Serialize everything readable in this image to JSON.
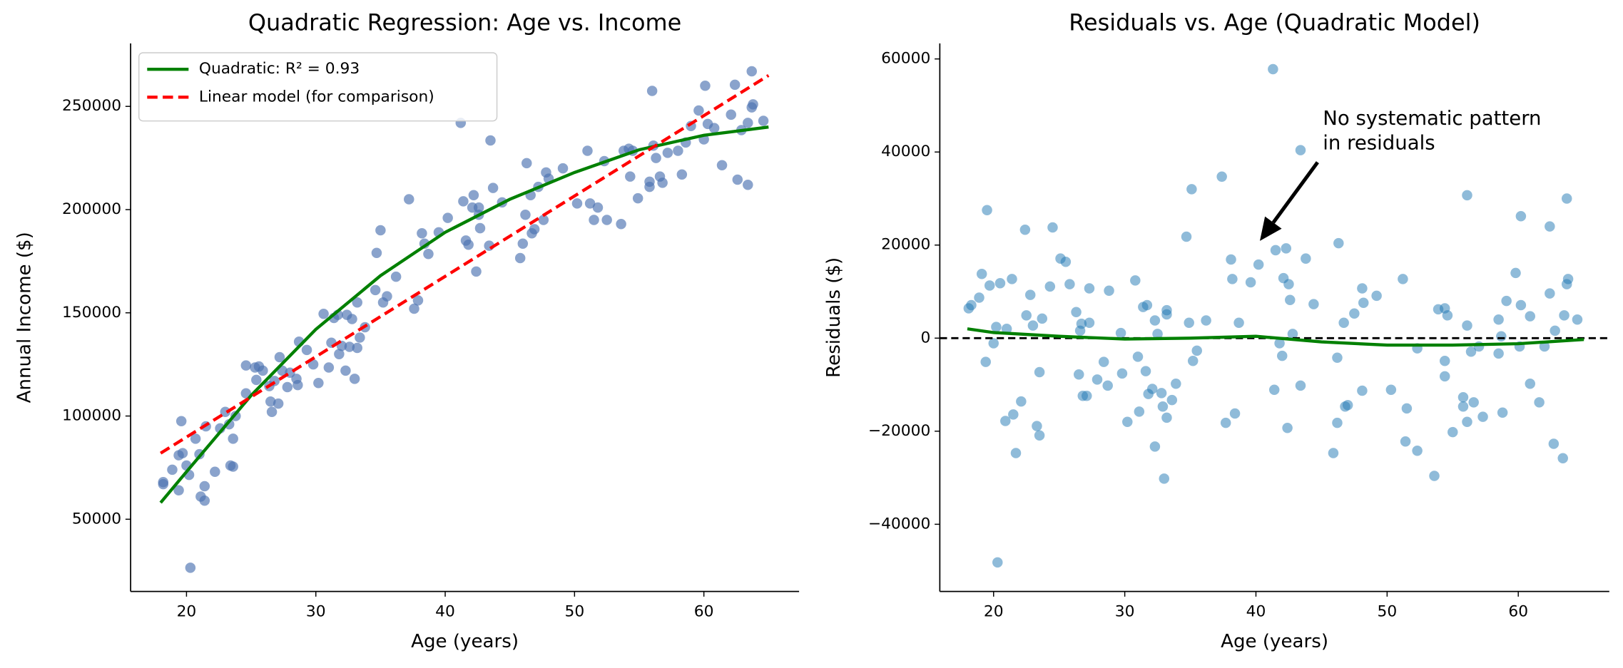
{
  "chart_data": [
    {
      "type": "scatter",
      "title": "Quadratic Regression: Age vs. Income",
      "xlabel": "Age (years)",
      "ylabel": "Annual Income ($)",
      "xlim": [
        15.68,
        67.36
      ],
      "ylim": [
        15000,
        280500
      ],
      "xticks": [
        20,
        30,
        40,
        50,
        60
      ],
      "yticks": [
        50000,
        100000,
        150000,
        200000,
        250000
      ],
      "legend": "upper left",
      "points": {
        "color": "#4c72b0",
        "opacity": 0.65,
        "x": [
          18.2,
          18.2,
          18.9,
          19.6,
          19.4,
          19.7,
          19.4,
          20.0,
          20.2,
          20.3,
          20.7,
          21.0,
          21.1,
          21.4,
          21.4,
          21.5,
          22.2,
          22.6,
          23.0,
          23.3,
          23.4,
          23.6,
          23.6,
          23.8,
          24.6,
          24.6,
          25.3,
          25.6,
          25.4,
          25.9,
          26.4,
          26.5,
          26.6,
          26.8,
          27.1,
          27.2,
          27.4,
          27.8,
          28.0,
          28.5,
          28.6,
          28.7,
          29.3,
          29.8,
          30.2,
          30.6,
          31.0,
          31.2,
          31.4,
          31.7,
          31.8,
          32.0,
          32.4,
          32.3,
          32.6,
          32.8,
          33.0,
          33.2,
          33.2,
          33.4,
          33.8,
          34.6,
          34.7,
          35.0,
          35.2,
          35.5,
          36.2,
          37.2,
          37.6,
          37.9,
          38.2,
          38.4,
          38.7,
          39.5,
          40.2,
          41.2,
          41.4,
          41.6,
          41.8,
          42.1,
          42.2,
          42.4,
          42.6,
          42.6,
          42.7,
          43.4,
          43.5,
          43.7,
          44.4,
          45.8,
          46.0,
          46.2,
          46.3,
          46.6,
          46.7,
          46.9,
          47.2,
          47.6,
          47.8,
          48.0,
          49.1,
          50.2,
          51.0,
          51.2,
          51.5,
          51.8,
          52.3,
          52.5,
          53.6,
          53.8,
          54.2,
          54.3,
          54.5,
          54.9,
          55.8,
          55.8,
          56.0,
          56.1,
          56.3,
          56.6,
          56.8,
          57.2,
          58.0,
          58.3,
          58.6,
          59.0,
          59.6,
          60.0,
          60.1,
          60.3,
          60.8,
          61.4,
          62.1,
          62.4,
          62.6,
          62.9,
          63.4,
          63.4,
          63.7,
          63.7,
          63.8,
          64.6
        ],
        "y": [
          67000,
          68000,
          74000,
          97500,
          81000,
          82000,
          64000,
          76000,
          71500,
          26500,
          89000,
          81500,
          61000,
          66000,
          59000,
          95000,
          73000,
          94000,
          102000,
          96000,
          76000,
          75500,
          89000,
          100000,
          124500,
          111000,
          123500,
          124000,
          117500,
          122000,
          114500,
          107000,
          102000,
          117000,
          106000,
          128500,
          122000,
          114000,
          121000,
          118000,
          115000,
          136000,
          132000,
          125000,
          116000,
          149500,
          123500,
          135500,
          147500,
          149000,
          130000,
          134000,
          149000,
          122000,
          133500,
          147000,
          118000,
          155000,
          133000,
          138000,
          143000,
          161000,
          179000,
          190000,
          155000,
          158000,
          167500,
          205000,
          152000,
          156000,
          188500,
          183500,
          178500,
          189000,
          196000,
          242000,
          204000,
          185000,
          183000,
          201000,
          207000,
          170000,
          201000,
          197500,
          191000,
          182500,
          233500,
          210500,
          203500,
          176500,
          183500,
          197500,
          222500,
          207000,
          188500,
          190500,
          211000,
          195000,
          218000,
          215000,
          220000,
          203000,
          228500,
          203000,
          195000,
          201000,
          223500,
          195000,
          193000,
          228500,
          229500,
          216000,
          228500,
          205500,
          213500,
          211000,
          257500,
          231000,
          225000,
          216000,
          213000,
          227500,
          228500,
          217000,
          232500,
          240500,
          248000,
          234000,
          260000,
          241500,
          239500,
          221500,
          246000,
          260500,
          214500,
          238500,
          212000,
          242000,
          267000,
          249500,
          251000,
          243000
        ]
      },
      "lines": [
        {
          "name": "Quadratic: R² = 0.93",
          "color": "#008000",
          "style": "solid",
          "x": [
            18,
            20,
            25,
            30,
            35,
            40,
            45,
            50,
            55,
            60,
            65
          ],
          "y": [
            58000,
            73000,
            110000,
            142000,
            168000,
            189000,
            205000,
            218000,
            229000,
            236000,
            240000
          ]
        },
        {
          "name": "Linear model (for comparison)",
          "color": "#ff0000",
          "style": "dashed",
          "x": [
            18,
            65
          ],
          "y": [
            82000,
            265000
          ]
        }
      ]
    },
    {
      "type": "scatter",
      "title": "Residuals vs. Age (Quadratic Model)",
      "xlabel": "Age (years)",
      "ylabel": "Residuals ($)",
      "xlim": [
        15.9,
        66.94
      ],
      "ylim": [
        -54444,
        63333
      ],
      "xticks": [
        20,
        30,
        40,
        50,
        60
      ],
      "yticks": [
        {
          "value": -40000,
          "label": "−40000"
        },
        {
          "value": -20000,
          "label": "−20000"
        },
        0,
        20000,
        40000,
        60000
      ],
      "points": {
        "color": "#1f77b4",
        "opacity": 0.5,
        "x": [
          18.1,
          18.3,
          19.1,
          18.9,
          19.4,
          19.5,
          19.7,
          20.0,
          20.2,
          20.3,
          20.5,
          20.9,
          21.0,
          21.4,
          21.5,
          21.7,
          22.1,
          22.4,
          22.5,
          22.8,
          23.0,
          23.3,
          23.5,
          23.5,
          23.7,
          24.3,
          24.5,
          25.1,
          25.5,
          25.8,
          26.3,
          26.5,
          26.6,
          26.7,
          26.8,
          27.1,
          27.3,
          27.3,
          27.9,
          28.4,
          28.7,
          28.8,
          29.7,
          29.8,
          30.2,
          30.8,
          31.0,
          31.1,
          31.4,
          31.6,
          31.7,
          31.8,
          32.1,
          32.3,
          32.3,
          32.5,
          32.8,
          32.9,
          33.0,
          33.2,
          33.2,
          33.2,
          33.6,
          33.9,
          34.7,
          34.9,
          35.1,
          35.2,
          35.5,
          36.2,
          37.4,
          37.7,
          38.1,
          38.2,
          38.4,
          38.7,
          39.6,
          40.2,
          41.3,
          41.4,
          41.5,
          41.8,
          42.0,
          42.1,
          42.3,
          42.4,
          42.5,
          42.6,
          42.8,
          43.4,
          43.4,
          43.8,
          44.4,
          45.9,
          46.2,
          46.2,
          46.3,
          46.7,
          46.8,
          47.0,
          47.5,
          48.1,
          48.1,
          48.2,
          49.2,
          50.3,
          51.2,
          51.4,
          51.5,
          52.3,
          52.3,
          53.6,
          53.9,
          54.4,
          54.4,
          54.4,
          54.6,
          55.0,
          55.8,
          55.8,
          56.1,
          56.1,
          56.1,
          56.4,
          56.6,
          57.0,
          57.3,
          58.5,
          58.5,
          58.7,
          58.8,
          59.1,
          59.8,
          60.1,
          60.2,
          60.2,
          60.9,
          60.9,
          61.6,
          62.0,
          62.4,
          62.4,
          62.7,
          62.8,
          63.4,
          63.5,
          63.7,
          63.7,
          63.8,
          64.5
        ],
        "y": [
          6400,
          7100,
          13800,
          8700,
          -5100,
          27500,
          11300,
          -1100,
          2400,
          -48200,
          11800,
          -17800,
          2000,
          12700,
          -16400,
          -24700,
          -13600,
          23300,
          4900,
          9300,
          2700,
          -18900,
          -20900,
          -7300,
          4200,
          11100,
          23800,
          17100,
          16400,
          11600,
          5600,
          -7800,
          1600,
          3100,
          -12400,
          -12400,
          10700,
          3300,
          -8900,
          -5100,
          -10200,
          10200,
          1100,
          -7600,
          -18000,
          12400,
          -4000,
          -15800,
          6700,
          -7100,
          7100,
          -12000,
          -10900,
          3800,
          -23300,
          900,
          -11800,
          -14700,
          -30200,
          6000,
          5100,
          -17100,
          -13300,
          -9800,
          21800,
          3300,
          32000,
          -4900,
          -2700,
          3800,
          34700,
          -18200,
          16900,
          12700,
          -16200,
          3300,
          12000,
          15800,
          57800,
          -11100,
          18900,
          -1100,
          -3800,
          12900,
          19300,
          -19300,
          11600,
          8200,
          900,
          -10200,
          40400,
          17100,
          7300,
          -24700,
          -4200,
          -18200,
          20400,
          3300,
          -14700,
          -14400,
          5300,
          -11300,
          10700,
          7600,
          9100,
          -11100,
          12700,
          -22200,
          -15100,
          -24200,
          -2200,
          -29600,
          6200,
          6400,
          -4900,
          -8200,
          4900,
          -20200,
          -12700,
          -14700,
          30700,
          2700,
          -18000,
          -2900,
          -13800,
          -1800,
          -16900,
          4000,
          -3300,
          400,
          -16000,
          8000,
          14000,
          -1800,
          7100,
          26200,
          -9800,
          4700,
          -13800,
          -1800,
          9600,
          24000,
          -22700,
          1600,
          -25800,
          4900,
          11600,
          30000,
          12700,
          4000
        ]
      },
      "lines": [
        {
          "color": "#008000",
          "style": "solid",
          "x": [
            18,
            20,
            25,
            30,
            35,
            40,
            45,
            50,
            55,
            60,
            65
          ],
          "y": [
            2000,
            1200,
            400,
            -200,
            0,
            400,
            -800,
            -1500,
            -1500,
            -1200,
            -300
          ]
        }
      ],
      "hline": {
        "value": 0,
        "color": "#000000",
        "style": "dashed"
      },
      "annotation": {
        "lines": [
          "No systematic pattern",
          "in residuals"
        ],
        "x": 45.1,
        "y": 47100,
        "arrow_x": 44.7,
        "arrow_y": 37800,
        "arrow_tip_x": 40.3,
        "arrow_tip_y": 20900
      }
    }
  ]
}
